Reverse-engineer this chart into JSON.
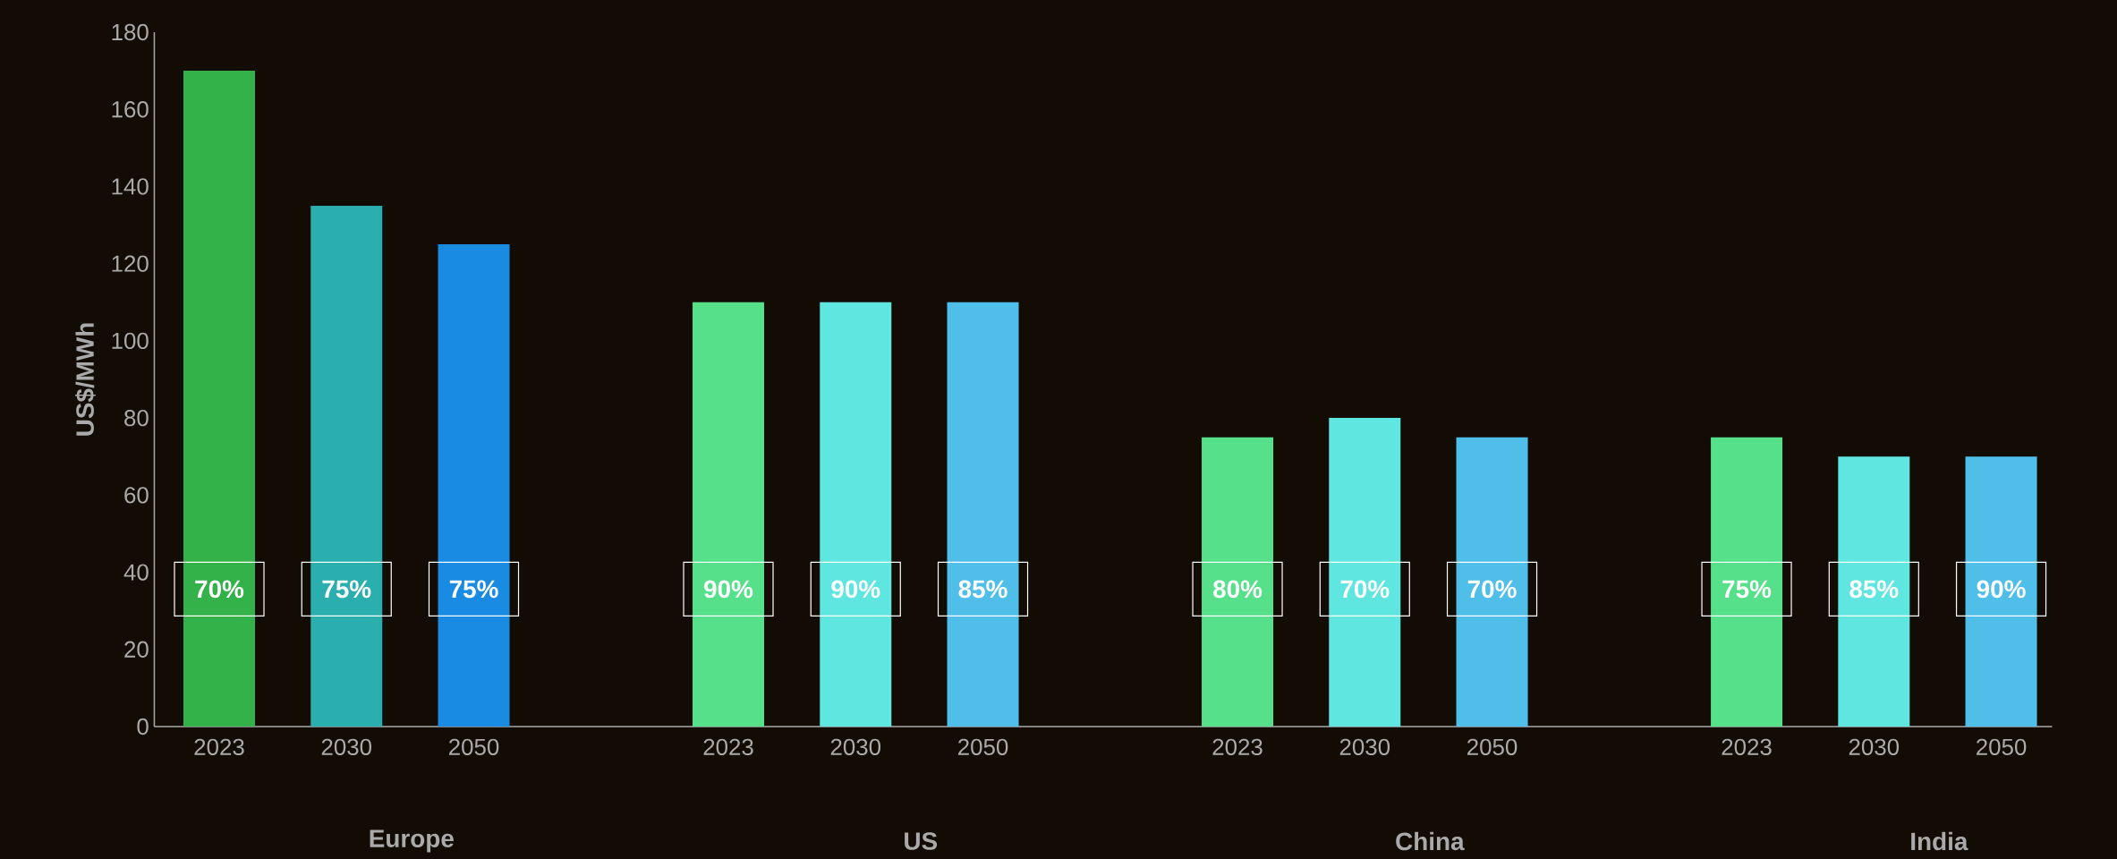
{
  "chart_data": {
    "type": "bar",
    "ylabel": "US$/MWh",
    "categories": [
      "2023",
      "2030",
      "2050",
      "2023",
      "2030",
      "2050",
      "2023",
      "2030",
      "2050",
      "2023",
      "2030",
      "2050"
    ],
    "values": [
      170,
      135,
      125,
      110,
      110,
      110,
      75,
      80,
      75,
      75,
      70,
      70
    ],
    "colors": [
      "#33b249",
      "#2aaeae",
      "#1a8be3",
      "#56e08a",
      "#60e6e0",
      "#4fbfea",
      "#56e08a",
      "#60e6e0",
      "#4fbfea",
      "#56e08a",
      "#60e6e0",
      "#4fbfea"
    ],
    "annotations": [
      "Europe",
      "US",
      "China",
      "India",
      "70%",
      "75%",
      "75%",
      "90%",
      "90%",
      "85%",
      "80%",
      "70%",
      "70%",
      "75%",
      "85%",
      "90%"
    ],
    "ylim": [
      0,
      180
    ],
    "yticks": [
      0,
      20,
      40,
      60,
      80,
      100,
      120,
      140,
      160,
      180
    ],
    "grid": false
  }
}
